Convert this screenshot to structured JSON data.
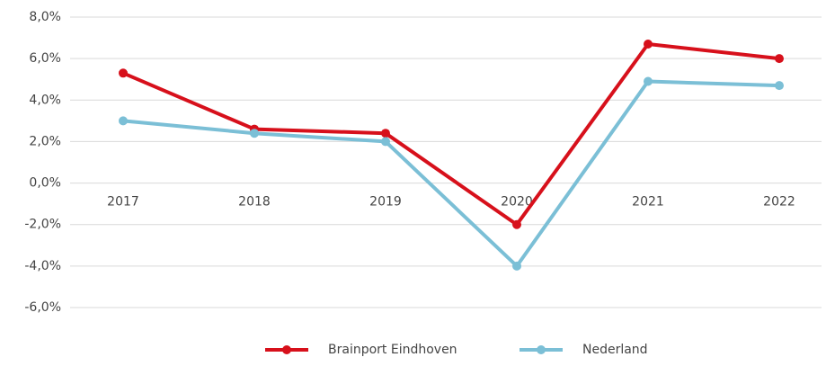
{
  "chart_data": {
    "type": "line",
    "categories": [
      "2017",
      "2018",
      "2019",
      "2020",
      "2021",
      "2022"
    ],
    "series": [
      {
        "name": "Brainport Eindhoven",
        "color": "#d7101b",
        "values": [
          5.3,
          2.6,
          2.4,
          -2.0,
          6.7,
          6.0
        ]
      },
      {
        "name": "Nederland",
        "color": "#7bbfd6",
        "values": [
          3.0,
          2.4,
          2.0,
          -4.0,
          4.9,
          4.7
        ]
      }
    ],
    "ylim": [
      -6,
      8
    ],
    "yticks": [
      {
        "value": -6,
        "label": "-6,0%"
      },
      {
        "value": -4,
        "label": "-4,0%"
      },
      {
        "value": -2,
        "label": "-2,0%"
      },
      {
        "value": 0,
        "label": "0,0%"
      },
      {
        "value": 2,
        "label": "2,0%"
      },
      {
        "value": 4,
        "label": "4,0%"
      },
      {
        "value": 6,
        "label": "6,0%"
      },
      {
        "value": 8,
        "label": "8,0%"
      }
    ],
    "grid": true,
    "legend": "bottom"
  }
}
